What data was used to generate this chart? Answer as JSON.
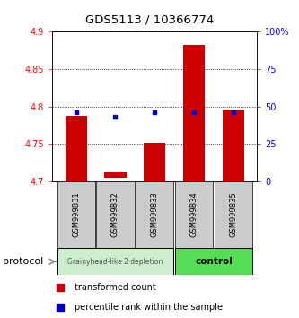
{
  "title": "GDS5113 / 10366774",
  "samples": [
    "GSM999831",
    "GSM999832",
    "GSM999833",
    "GSM999834",
    "GSM999835"
  ],
  "bar_bottoms": [
    4.7,
    4.705,
    4.7,
    4.7,
    4.7
  ],
  "bar_tops": [
    4.787,
    4.712,
    4.752,
    4.882,
    4.796
  ],
  "percentile_ranks": [
    46,
    43,
    46,
    46,
    46
  ],
  "ylim_left": [
    4.7,
    4.9
  ],
  "ylim_right": [
    0,
    100
  ],
  "yticks_left": [
    4.7,
    4.75,
    4.8,
    4.85,
    4.9
  ],
  "yticks_right": [
    0,
    25,
    50,
    75,
    100
  ],
  "ytick_labels_left": [
    "4.7",
    "4.75",
    "4.8",
    "4.85",
    "4.9"
  ],
  "ytick_labels_right": [
    "0",
    "25",
    "50",
    "75",
    "100%"
  ],
  "bar_color": "#CC0000",
  "percentile_color": "#0000CC",
  "group1_color": "#cceecc",
  "group2_color": "#55dd55",
  "group1_label": "Grainyhead-like 2 depletion",
  "group2_label": "control",
  "group1_samples": [
    0,
    1,
    2
  ],
  "group2_samples": [
    3,
    4
  ],
  "protocol_label": "protocol",
  "legend_red_label": "transformed count",
  "legend_blue_label": "percentile rank within the sample",
  "bar_width": 0.55,
  "xlabel_area_color": "#cccccc"
}
